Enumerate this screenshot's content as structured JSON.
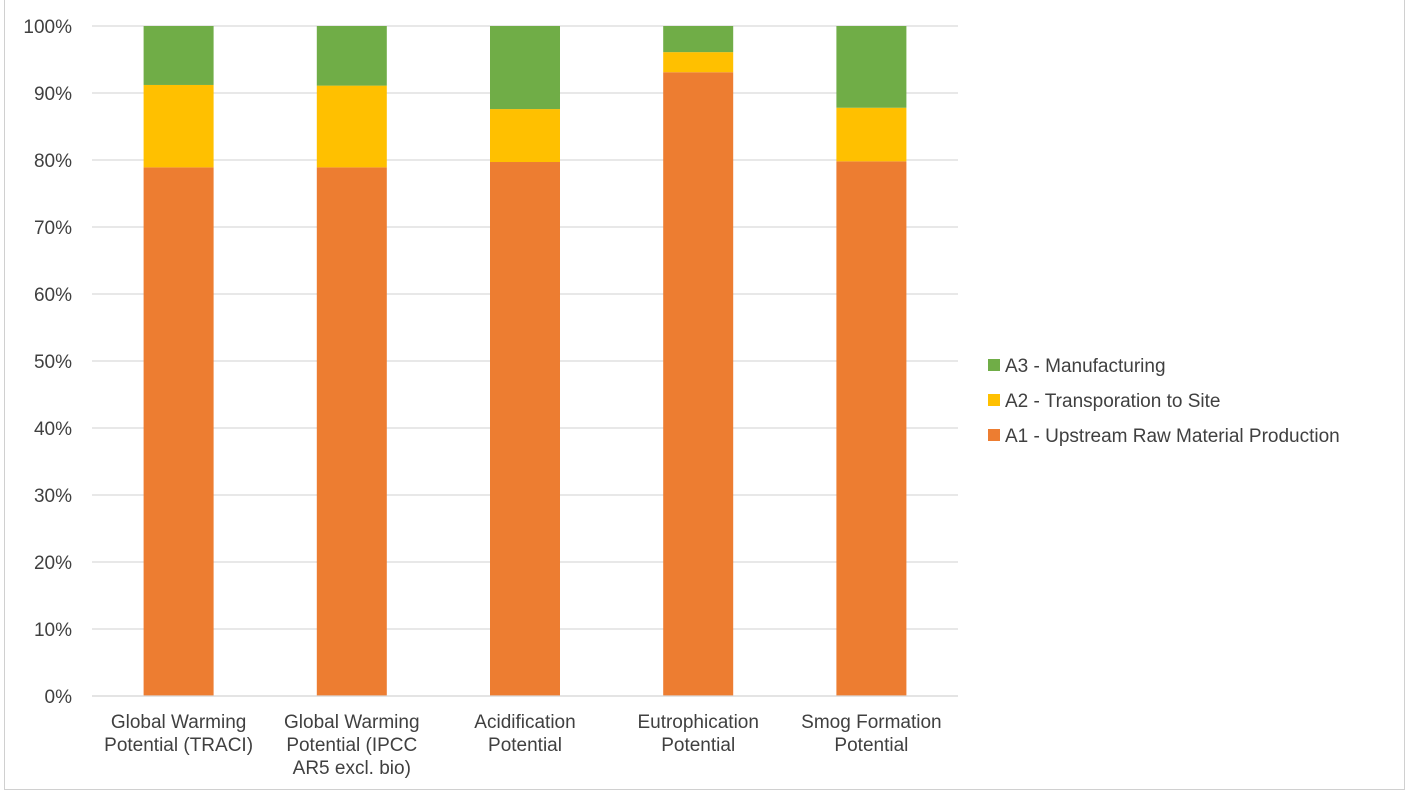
{
  "chart_data": {
    "type": "bar",
    "stacked": true,
    "percent_stacked": true,
    "categories": [
      [
        "Global Warming",
        "Potential (TRACI)"
      ],
      [
        "Global Warming",
        "Potential (IPCC",
        "AR5 excl. bio)"
      ],
      [
        "Acidification",
        "Potential"
      ],
      [
        "Eutrophication",
        "Potential"
      ],
      [
        "Smog Formation",
        "Potential"
      ]
    ],
    "series": [
      {
        "name": "A1 - Upstream Raw Material Production",
        "color": "#ED7D31",
        "values": [
          78.9,
          78.9,
          79.7,
          93.1,
          79.8
        ]
      },
      {
        "name": "A2 - Transporation to Site",
        "color": "#FFC000",
        "values": [
          12.3,
          12.2,
          7.9,
          3.0,
          8.0
        ]
      },
      {
        "name": "A3 - Manufacturing",
        "color": "#70AD47",
        "values": [
          8.8,
          8.9,
          12.4,
          3.9,
          12.2
        ]
      }
    ],
    "ylim": [
      0,
      100
    ],
    "yticks": [
      "0%",
      "10%",
      "20%",
      "30%",
      "40%",
      "50%",
      "60%",
      "70%",
      "80%",
      "90%",
      "100%"
    ],
    "grid": true,
    "legend_position": "right",
    "legend_order": [
      "A3 - Manufacturing",
      "A2 - Transporation to Site",
      "A1 - Upstream Raw Material Production"
    ]
  }
}
